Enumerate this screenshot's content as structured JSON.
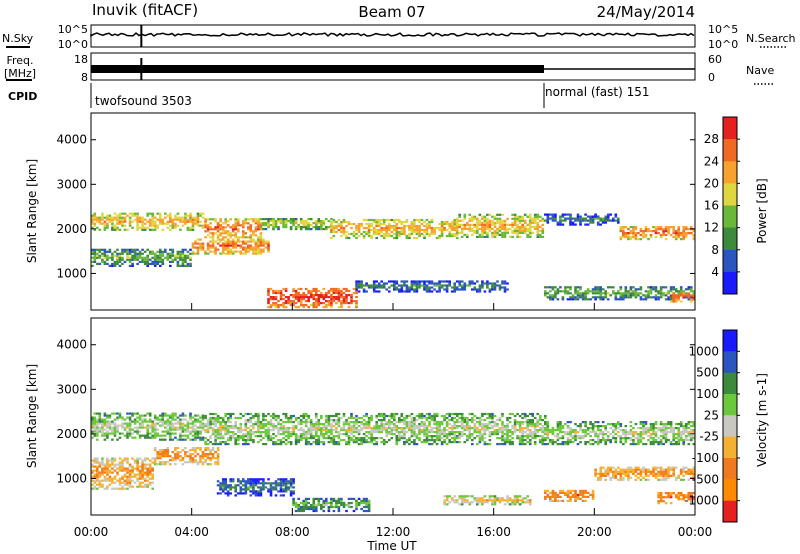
{
  "header": {
    "title": "Inuvik (fitACF)",
    "beam": "Beam 07",
    "date": "24/May/2014"
  },
  "top_panels": {
    "nsky_label": "N.Sky",
    "nsearch_label": "N.Search",
    "nsky_ticks": [
      "10^5",
      "10^0"
    ],
    "nsearch_ticks": [
      "10^5",
      "10^0"
    ],
    "freq_label_line1": "Freq.",
    "freq_label_line2": "[MHz]",
    "freq_ticks": [
      "18",
      "8"
    ],
    "nave_label": "Nave",
    "nave_ticks": [
      "60",
      "0"
    ],
    "cpid_label": "CPID",
    "cpid_segments": [
      {
        "label": "twofsound 3503",
        "start_hour": 0,
        "end_hour": 18.0
      },
      {
        "label": "normal (fast) 151",
        "start_hour": 18.0,
        "end_hour": 24
      }
    ]
  },
  "chart_data": [
    {
      "type": "heatmap",
      "parameter": "power",
      "ylabel": "Slant Range [km]",
      "ylim": [
        180,
        4600
      ],
      "yticks": [
        "1000",
        "2000",
        "3000",
        "4000"
      ],
      "xlim": [
        "00:00",
        "24:00"
      ],
      "colorbar": {
        "label": "Power [dB]",
        "ticks": [
          "4",
          "8",
          "12",
          "16",
          "20",
          "24",
          "28"
        ],
        "colors": [
          "#1a1aff",
          "#2b55c0",
          "#3d8a3d",
          "#6ab83a",
          "#e0d640",
          "#f6a130",
          "#f06a24",
          "#e52020"
        ]
      },
      "bands": [
        {
          "start_hour": 0.0,
          "end_hour": 4.5,
          "center_km": 2150,
          "width_km": 380,
          "level": 5
        },
        {
          "start_hour": 4.5,
          "end_hour": 6.7,
          "center_km": 2000,
          "width_km": 420,
          "level": 6
        },
        {
          "start_hour": 6.7,
          "end_hour": 9.5,
          "center_km": 2100,
          "width_km": 250,
          "level": 4
        },
        {
          "start_hour": 9.5,
          "end_hour": 14.5,
          "center_km": 2000,
          "width_km": 450,
          "level": 5
        },
        {
          "start_hour": 14.5,
          "end_hour": 18.0,
          "center_km": 2050,
          "width_km": 500,
          "level": 5
        },
        {
          "start_hour": 18.0,
          "end_hour": 21.0,
          "center_km": 2200,
          "width_km": 250,
          "level": 2
        },
        {
          "start_hour": 21.0,
          "end_hour": 24.0,
          "center_km": 1900,
          "width_km": 300,
          "level": 6
        },
        {
          "start_hour": 0.0,
          "end_hour": 4.0,
          "center_km": 1350,
          "width_km": 400,
          "level": 3
        },
        {
          "start_hour": 4.0,
          "end_hour": 7.0,
          "center_km": 1600,
          "width_km": 350,
          "level": 6
        },
        {
          "start_hour": 7.0,
          "end_hour": 10.5,
          "center_km": 450,
          "width_km": 450,
          "level": 7
        },
        {
          "start_hour": 10.5,
          "end_hour": 16.5,
          "center_km": 700,
          "width_km": 250,
          "level": 2
        },
        {
          "start_hour": 18.0,
          "end_hour": 24.0,
          "center_km": 550,
          "width_km": 300,
          "level": 3
        },
        {
          "start_hour": 23.0,
          "end_hour": 24.0,
          "center_km": 450,
          "width_km": 200,
          "level": 7
        }
      ]
    },
    {
      "type": "heatmap",
      "parameter": "velocity",
      "ylabel": "Slant Range [km]",
      "ylim": [
        180,
        4600
      ],
      "yticks": [
        "1000",
        "2000",
        "3000",
        "4000"
      ],
      "xlabel": "Time UT",
      "xlim": [
        "00:00",
        "24:00"
      ],
      "xticks": [
        "00:00",
        "04:00",
        "08:00",
        "12:00",
        "16:00",
        "20:00",
        "00:00"
      ],
      "colorbar": {
        "label": "Velocity [m s-1]",
        "ticks": [
          "1000",
          "500",
          "100",
          "25",
          "-25",
          "-100",
          "-500",
          "-1000"
        ],
        "colors": [
          "#1a1aff",
          "#2b55c0",
          "#3d8a3d",
          "#6ac83a",
          "#c8c8c0",
          "#f6b030",
          "#f07a20",
          "#ff8a00",
          "#e52020"
        ]
      },
      "bands": [
        {
          "start_hour": 0.0,
          "end_hour": 4.5,
          "center_km": 2150,
          "width_km": 600,
          "level": 4
        },
        {
          "start_hour": 4.5,
          "end_hour": 18.0,
          "center_km": 2100,
          "width_km": 700,
          "level": 4
        },
        {
          "start_hour": 18.0,
          "end_hour": 24.0,
          "center_km": 2000,
          "width_km": 500,
          "level": 4
        },
        {
          "start_hour": 0.0,
          "end_hour": 2.5,
          "center_km": 1100,
          "width_km": 700,
          "level": 6
        },
        {
          "start_hour": 2.5,
          "end_hour": 5.0,
          "center_km": 1500,
          "width_km": 400,
          "level": 6
        },
        {
          "start_hour": 5.0,
          "end_hour": 8.0,
          "center_km": 800,
          "width_km": 400,
          "level": 2
        },
        {
          "start_hour": 8.0,
          "end_hour": 11.0,
          "center_km": 400,
          "width_km": 300,
          "level": 3
        },
        {
          "start_hour": 14.0,
          "end_hour": 17.5,
          "center_km": 500,
          "width_km": 200,
          "level": 5
        },
        {
          "start_hour": 18.0,
          "end_hour": 20.0,
          "center_km": 600,
          "width_km": 250,
          "level": 7
        },
        {
          "start_hour": 20.0,
          "end_hour": 24.0,
          "center_km": 1100,
          "width_km": 300,
          "level": 6
        },
        {
          "start_hour": 22.5,
          "end_hour": 24.0,
          "center_km": 550,
          "width_km": 250,
          "level": 7
        }
      ]
    }
  ]
}
